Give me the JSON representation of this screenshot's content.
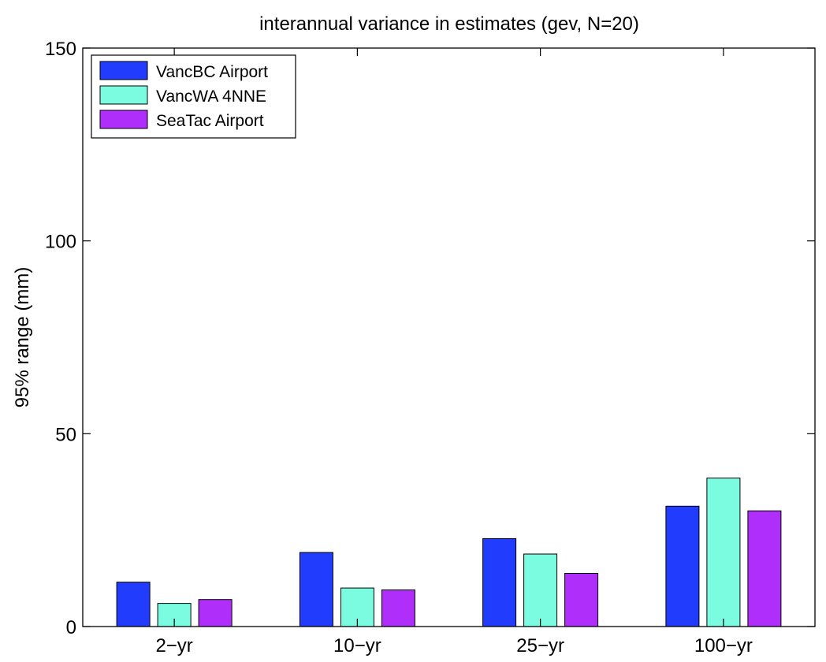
{
  "chart_data": {
    "type": "bar",
    "title": "interannual variance in estimates (gev, N=20)",
    "xlabel": "",
    "ylabel": "95% range (mm)",
    "categories": [
      "2−yr",
      "10−yr",
      "25−yr",
      "100−yr"
    ],
    "ylim": [
      0,
      150
    ],
    "yticks": [
      0,
      50,
      100,
      150
    ],
    "grid": false,
    "legend_position": "top-left",
    "series": [
      {
        "name": "VancBC Airport",
        "color": "#213cfd",
        "values": [
          11.5,
          19.2,
          22.8,
          31.2
        ]
      },
      {
        "name": "VancWA 4NNE",
        "color": "#7bfbe0",
        "values": [
          6.0,
          10.0,
          18.8,
          38.5
        ]
      },
      {
        "name": "SeaTac Airport",
        "color": "#b02ef9",
        "values": [
          7.0,
          9.5,
          13.8,
          30.0
        ]
      }
    ]
  }
}
